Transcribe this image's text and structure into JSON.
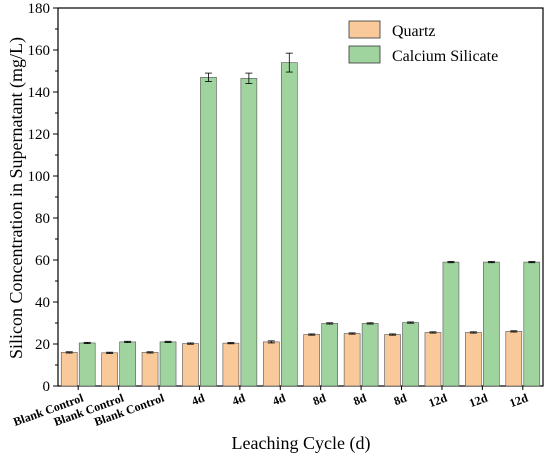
{
  "chart_data": {
    "type": "bar",
    "title": "",
    "xlabel": "Leaching Cycle (d)",
    "ylabel": "Silicon Concentration in Supernatant (mg/L)",
    "ylim": [
      0,
      180
    ],
    "yticks": [
      0,
      20,
      40,
      60,
      80,
      100,
      120,
      140,
      160,
      180
    ],
    "categories": [
      "Blank Control",
      "Blank Control",
      "Blank Control",
      "4d",
      "4d",
      "4d",
      "8d",
      "8d",
      "8d",
      "12d",
      "12d",
      "12d"
    ],
    "series": [
      {
        "name": "Quartz",
        "color": "#f9c99a",
        "values": [
          16.0,
          15.8,
          16.0,
          20.2,
          20.4,
          21.0,
          24.5,
          25.0,
          24.5,
          25.5,
          25.5,
          26.0
        ],
        "errors": [
          0.3,
          0.3,
          0.3,
          0.3,
          0.3,
          0.5,
          0.3,
          0.3,
          0.3,
          0.3,
          0.3,
          0.3
        ]
      },
      {
        "name": "Calcium Silicate",
        "color": "#9fd49f",
        "values": [
          20.5,
          21.0,
          21.0,
          147.0,
          146.5,
          154.0,
          29.8,
          29.8,
          30.2,
          59.0,
          59.0,
          59.0
        ],
        "errors": [
          0.3,
          0.3,
          0.3,
          2.0,
          2.5,
          4.5,
          0.3,
          0.3,
          0.3,
          0.3,
          0.3,
          0.3
        ]
      }
    ],
    "legend": {
      "position": "top-right"
    },
    "grid": false
  }
}
